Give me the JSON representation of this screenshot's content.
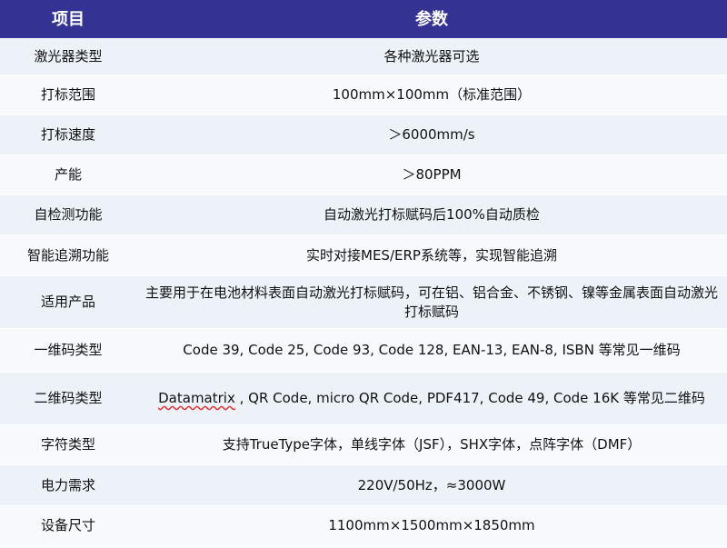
{
  "header": {
    "col1": "项目",
    "col2": "参数"
  },
  "colors": {
    "header_bg": "#343394",
    "row_odd": "#edf2f9",
    "row_even": "#f7f9fd"
  },
  "rows": [
    {
      "item": "激光器类型",
      "value": "各种激光器可选"
    },
    {
      "item": "打标范围",
      "value": "100mm×100mm（标准范围）"
    },
    {
      "item": "打标速度",
      "value": "＞6000mm/s"
    },
    {
      "item": "产能",
      "value": "＞80PPM"
    },
    {
      "item": "自检测功能",
      "value": "自动激光打标赋码后100%自动质检"
    },
    {
      "item": "智能追溯功能",
      "value": "实时对接MES/ERP系统等，实现智能追溯"
    },
    {
      "item": "适用产品",
      "value": "主要用于在电池材料表面自动激光打标赋码，可在铝、铝合金、不锈钢、镍等金属表面自动激光打标赋码"
    },
    {
      "item": "一维码类型",
      "value": "Code 39, Code 25, Code 93,  Code 128, EAN-13, EAN-8, ISBN 等常见一维码"
    },
    {
      "item": "二维码类型",
      "value_first": "Datamatrix",
      "value": " , QR Code, micro QR Code, PDF417,  Code 49, Code 16K 等常见二维码"
    },
    {
      "item": "字符类型",
      "value": "支持TrueType字体，单线字体（JSF），SHX字体，点阵字体（DMF）"
    },
    {
      "item": "电力需求",
      "value": "220V/50Hz，≈3000W"
    },
    {
      "item": "设备尺寸",
      "value": "1100mm×1500mm×1850mm"
    }
  ]
}
